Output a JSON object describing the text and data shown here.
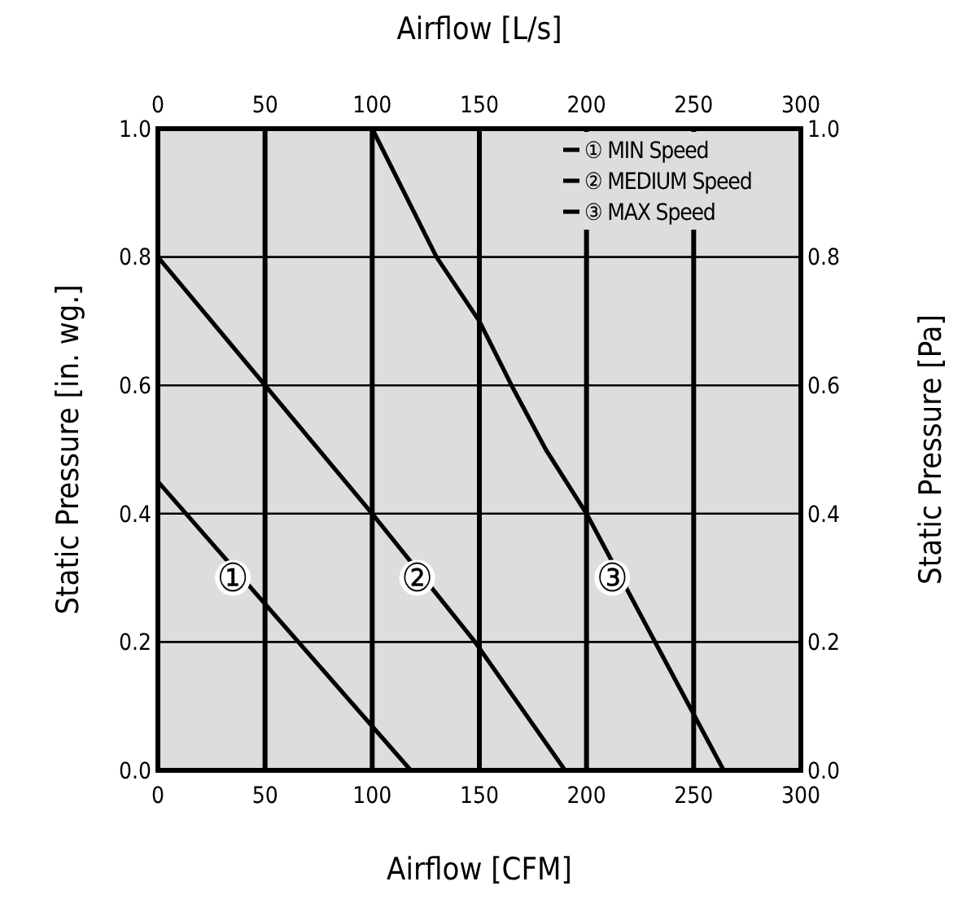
{
  "chart_data": {
    "type": "line",
    "xlabel": "Airflow [CFM]",
    "ylabel": "Static Pressure [in. wg.]",
    "x2label": "Airflow [L/s]",
    "y2label": "Static Pressure [Pa]",
    "xlim": [
      0,
      300
    ],
    "xticks": [
      0,
      50,
      100,
      150,
      200,
      250,
      300
    ],
    "x2lim": [
      0,
      300
    ],
    "x2ticks": [
      0,
      50,
      100,
      150,
      200,
      250,
      300
    ],
    "ylim": [
      0,
      1
    ],
    "yticks": [
      {
        "value": 0,
        "label": "0.0"
      },
      {
        "value": 0.2,
        "label": "0.2"
      },
      {
        "value": 0.4,
        "label": "0.4"
      },
      {
        "value": 0.6,
        "label": "0.6"
      },
      {
        "value": 0.8,
        "label": "0.8"
      },
      {
        "value": 1,
        "label": "1.0"
      }
    ],
    "y2lim": [
      0,
      1
    ],
    "y2ticks": [
      {
        "value": 0,
        "label": "0.0"
      },
      {
        "value": 0.2,
        "label": "0.2"
      },
      {
        "value": 0.4,
        "label": "0.4"
      },
      {
        "value": 0.6,
        "label": "0.6"
      },
      {
        "value": 0.8,
        "label": "0.8"
      },
      {
        "value": 1,
        "label": "1.0"
      }
    ],
    "grid": true,
    "legend": "top right",
    "line_style": "solid",
    "series": [
      {
        "name": "① MIN Speed",
        "color": "#000000",
        "x": [
          0,
          118
        ],
        "values": [
          0.45,
          0
        ]
      },
      {
        "name": "② MEDIUM Speed",
        "color": "#000000",
        "x": [
          0,
          50,
          100,
          148,
          190
        ],
        "values": [
          0.8,
          0.6,
          0.4,
          0.2,
          0
        ]
      },
      {
        "name": "③ MAX Speed",
        "color": "#000000",
        "x": [
          100,
          130,
          150,
          165,
          181,
          200,
          232,
          264
        ],
        "values": [
          1,
          0.8,
          0.7,
          0.6,
          0.5,
          0.4,
          0.2,
          0
        ]
      }
    ],
    "annotations": [
      {
        "text": "①",
        "x": 35,
        "y": 0.3
      },
      {
        "text": "②",
        "x": 121,
        "y": 0.3
      },
      {
        "text": "③",
        "x": 212,
        "y": 0.3
      }
    ]
  }
}
